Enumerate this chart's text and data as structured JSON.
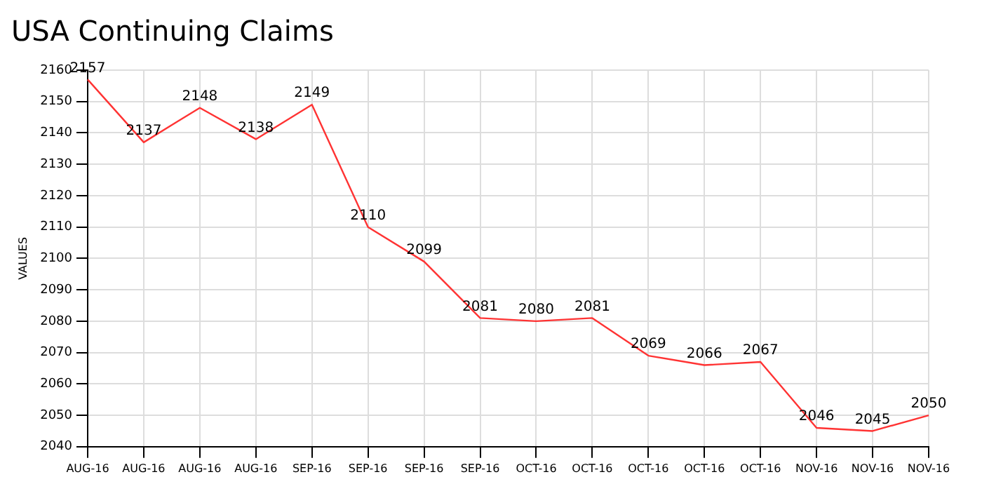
{
  "chart_data": {
    "type": "line",
    "title": "USA Continuing Claims",
    "ylabel": "VALUES",
    "categories": [
      "AUG-16",
      "AUG-16",
      "AUG-16",
      "AUG-16",
      "SEP-16",
      "SEP-16",
      "SEP-16",
      "SEP-16",
      "OCT-16",
      "OCT-16",
      "OCT-16",
      "OCT-16",
      "OCT-16",
      "NOV-16",
      "NOV-16",
      "NOV-16"
    ],
    "series": [
      {
        "color": "#ff3333",
        "values": [
          2157,
          2137,
          2148,
          2138,
          2149,
          2110,
          2099,
          2081,
          2080,
          2081,
          2069,
          2066,
          2067,
          2046,
          2045,
          2050
        ]
      }
    ],
    "ylim": [
      2040,
      2160
    ],
    "yticks": [
      2040,
      2050,
      2060,
      2070,
      2080,
      2090,
      2100,
      2110,
      2120,
      2130,
      2140,
      2150,
      2160
    ],
    "grid": true,
    "legend": false,
    "marker": "none",
    "line_style": "solid",
    "data_labels": true
  }
}
